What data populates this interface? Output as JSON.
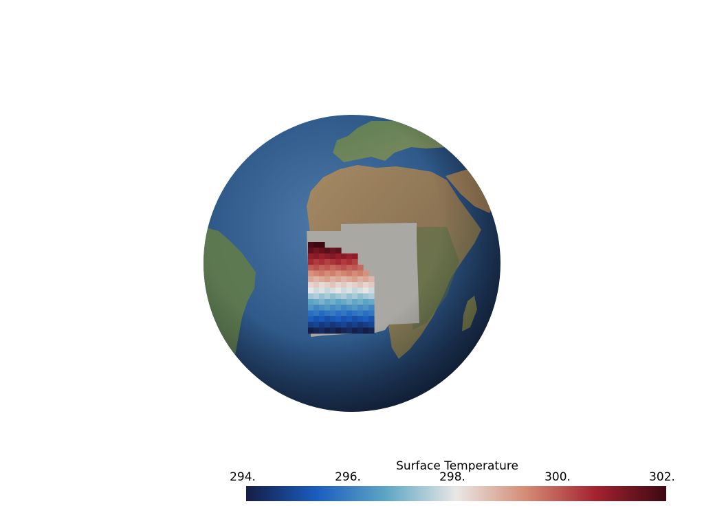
{
  "scene": {
    "background": "#ffffff",
    "projection": "orthographic globe centered on Africa / Atlantic",
    "ocean_color": "#2c5383",
    "land_color": "#8a7558",
    "mask_color": "#a9a8a2"
  },
  "colorbar": {
    "title": "Surface Temperature",
    "ticks": [
      "294.",
      "296.",
      "298.",
      "300.",
      "302."
    ],
    "range": [
      294,
      302
    ],
    "colormap": "balance",
    "stops": [
      "#151d44",
      "#1a5cc0",
      "#5ea6c4",
      "#e9e7e6",
      "#d48b74",
      "#a3222f",
      "#3c0912"
    ]
  }
}
